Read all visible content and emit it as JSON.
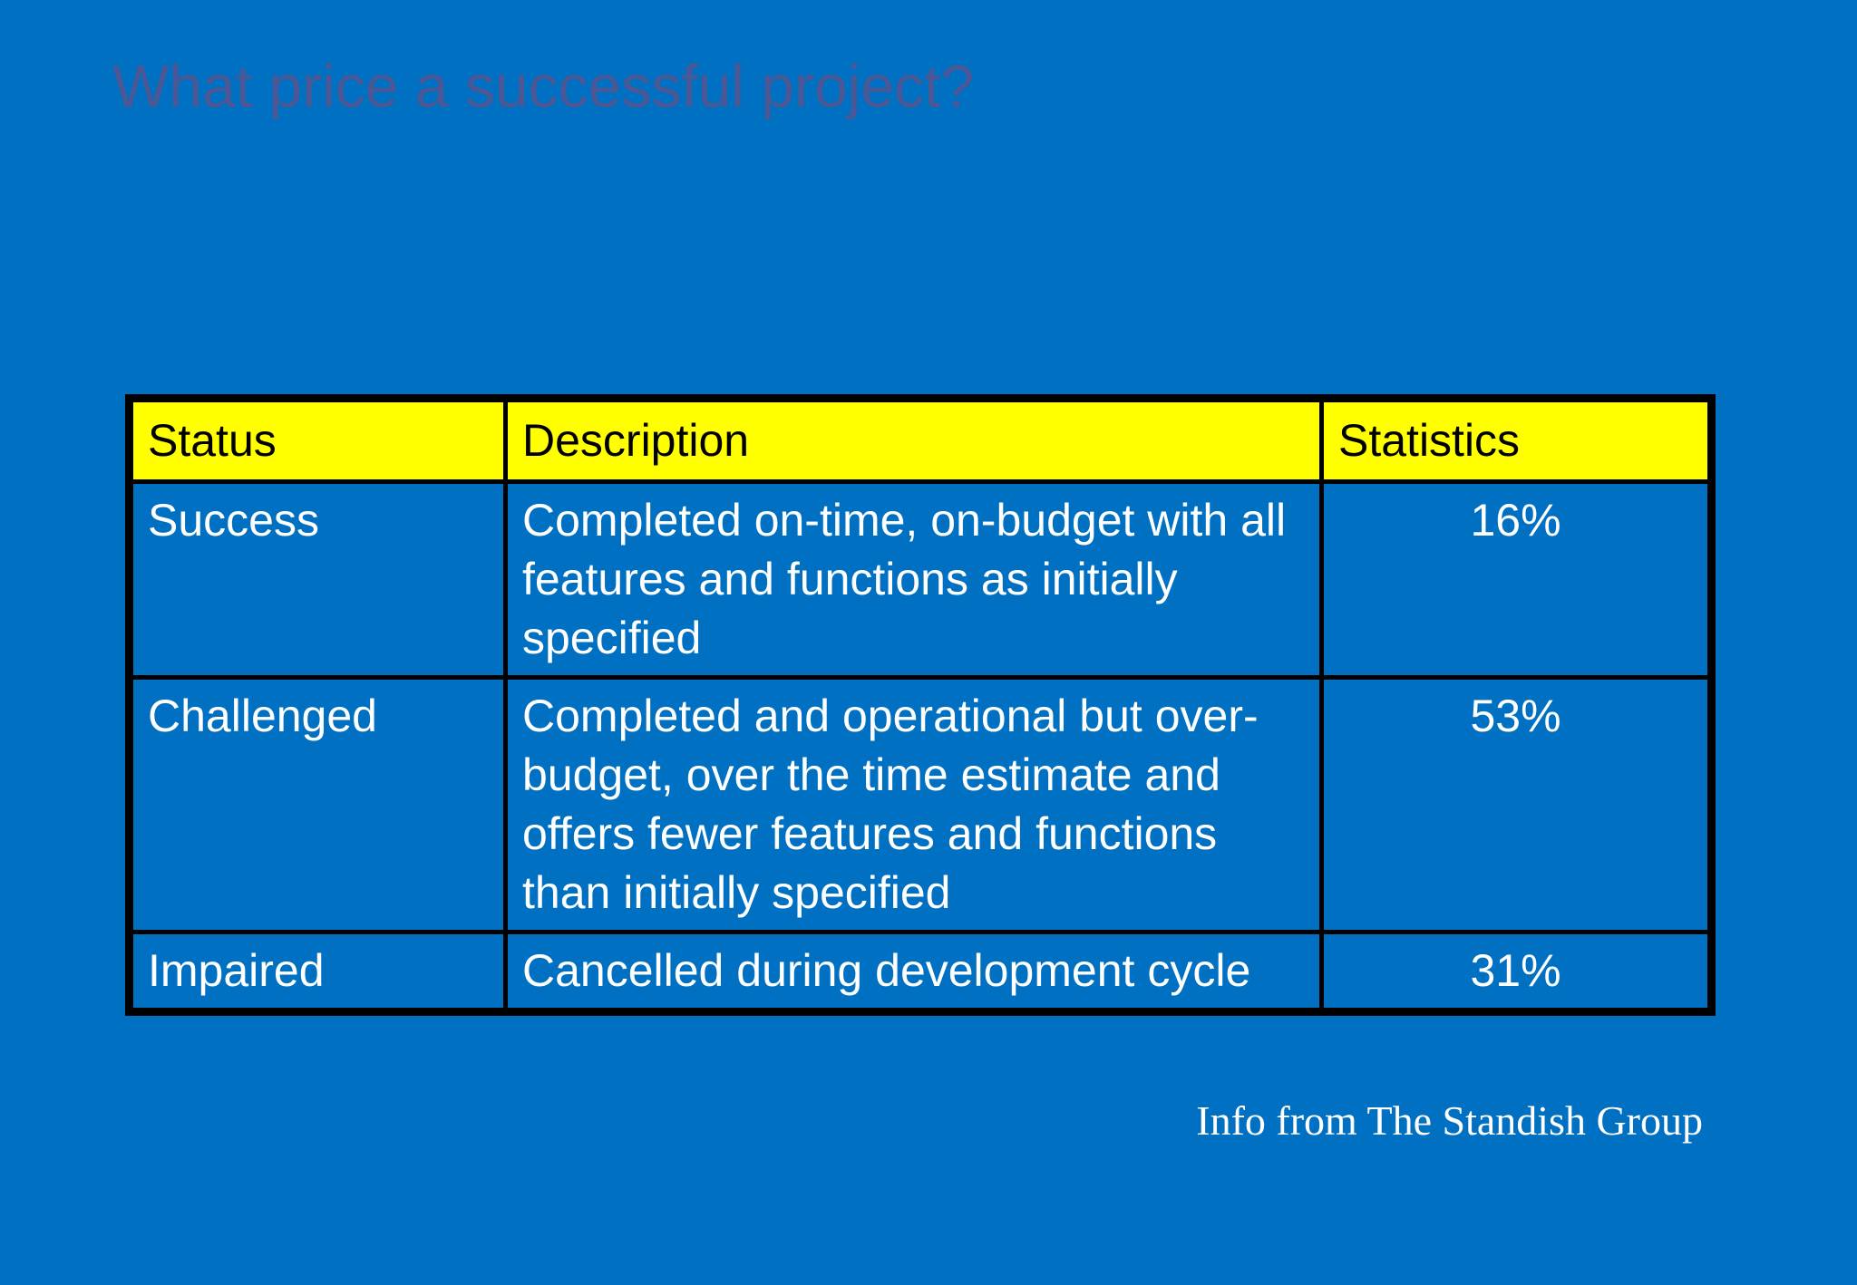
{
  "slide": {
    "title": "What price a successful project?",
    "attribution": "Info from The Standish Group"
  },
  "colors": {
    "background": "#0070c2",
    "title_text": "#4c5795",
    "table_header_bg": "#ffff00",
    "table_header_text": "#000000",
    "table_body_text": "#ffffff",
    "table_border": "#000000"
  },
  "table": {
    "headers": [
      "Status",
      "Description",
      "Statistics"
    ],
    "rows": [
      {
        "status": "Success",
        "description": "Completed on-time, on-budget with all features and functions as initially specified",
        "statistic": "16%"
      },
      {
        "status": "Challenged",
        "description": "Completed and operational but over-budget, over the time estimate and offers fewer features and functions than initially specified",
        "statistic": "53%"
      },
      {
        "status": "Impaired",
        "description": "Cancelled during development cycle",
        "statistic": "31%"
      }
    ]
  }
}
